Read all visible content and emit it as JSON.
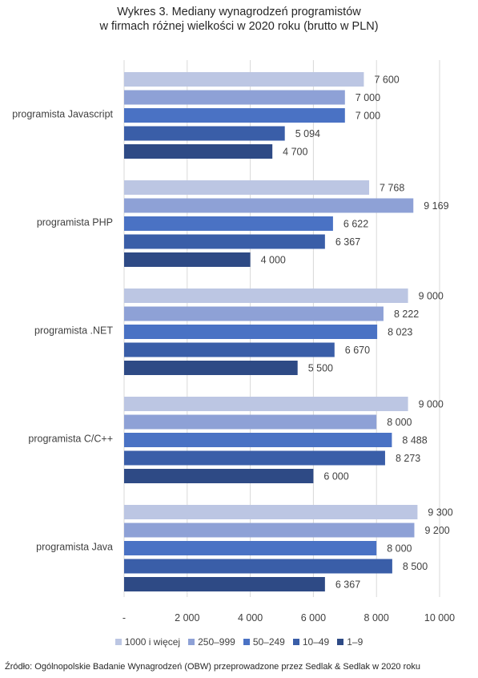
{
  "chart_data": {
    "type": "bar",
    "orientation": "horizontal",
    "title_lines": [
      "Wykres 3. Mediany wynagrodzeń programistów",
      "w firmach różnej wielkości w 2020 roku (brutto w PLN)"
    ],
    "categories": [
      "programista Javascript",
      "programista PHP",
      "programista .NET",
      "programista C/C++",
      "programista Java"
    ],
    "series": [
      {
        "name": "1000 i więcej",
        "color": "#bcc6e3",
        "values": [
          7600,
          7768,
          9000,
          9000,
          9300
        ],
        "labels": [
          "7 600",
          "7 768",
          "9 000",
          "9 000",
          "9 300"
        ]
      },
      {
        "name": "250–999",
        "color": "#8ea1d6",
        "values": [
          7000,
          9169,
          8222,
          8000,
          9200
        ],
        "labels": [
          "7 000",
          "9 169",
          "8 222",
          "8 000",
          "9 200"
        ]
      },
      {
        "name": "50–249",
        "color": "#4a72c4",
        "values": [
          7000,
          6622,
          8023,
          8488,
          8000
        ],
        "labels": [
          "7 000",
          "6 622",
          "8 023",
          "8 488",
          "8 000"
        ]
      },
      {
        "name": "10–49",
        "color": "#3a5ea8",
        "values": [
          5094,
          6367,
          6670,
          8273,
          8500
        ],
        "labels": [
          "5 094",
          "6 367",
          "6 670",
          "8 273",
          "8 500"
        ]
      },
      {
        "name": "1–9",
        "color": "#2e4a85",
        "values": [
          4700,
          4000,
          5500,
          6000,
          6367
        ],
        "labels": [
          "4 700",
          "4 000",
          "5 500",
          "6 000",
          "6 367"
        ]
      }
    ],
    "xlim": [
      0,
      10000
    ],
    "xticks": [
      0,
      2000,
      4000,
      6000,
      8000,
      10000
    ],
    "xtick_labels": [
      "-",
      "2 000",
      "4 000",
      "6 000",
      "8 000",
      "10 000"
    ],
    "grid": true,
    "legend_position": "bottom",
    "source": "Źródło: Ogólnopolskie Badanie Wynagrodzeń (OBW) przeprowadzone przez Sedlak & Sedlak w 2020 roku"
  }
}
